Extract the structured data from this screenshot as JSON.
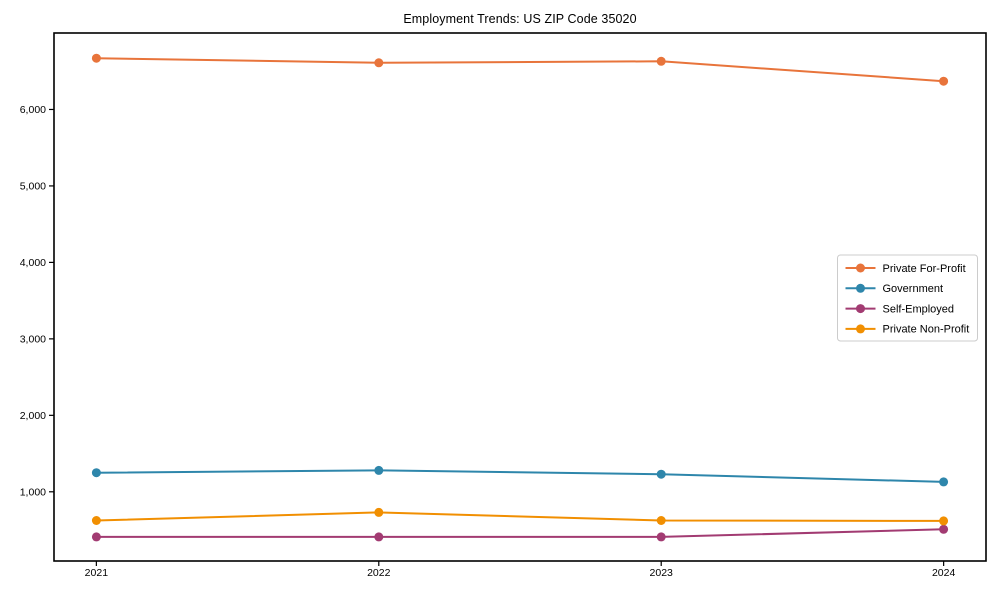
{
  "page": {
    "background": "#ffffff",
    "frame_color": "#000000",
    "tick_label_color": "#000000"
  },
  "chart_data": {
    "type": "line",
    "title": "Employment Trends: US ZIP Code 35020",
    "xlabel": "",
    "ylabel": "",
    "x": [
      2021,
      2022,
      2023,
      2024
    ],
    "x_tick_labels": [
      "2021",
      "2022",
      "2023",
      "2024"
    ],
    "y_tick_values": [
      1000,
      2000,
      3000,
      4000,
      5000,
      6000
    ],
    "y_tick_labels": [
      "1,000",
      "2,000",
      "3,000",
      "4,000",
      "5,000",
      "6,000"
    ],
    "xlim": [
      2020.85,
      2024.15
    ],
    "ylim": [
      95,
      7000
    ],
    "grid": false,
    "legend_position": "center-right",
    "marker": "circle",
    "series": [
      {
        "name": "Private For-Profit",
        "color": "#e8743b",
        "values": [
          6670,
          6610,
          6630,
          6370
        ]
      },
      {
        "name": "Government",
        "color": "#2e86ab",
        "values": [
          1250,
          1280,
          1230,
          1130
        ]
      },
      {
        "name": "Self-Employed",
        "color": "#a23b72",
        "values": [
          410,
          410,
          410,
          510
        ]
      },
      {
        "name": "Private Non-Profit",
        "color": "#f18f01",
        "values": [
          625,
          730,
          625,
          620
        ]
      }
    ]
  }
}
